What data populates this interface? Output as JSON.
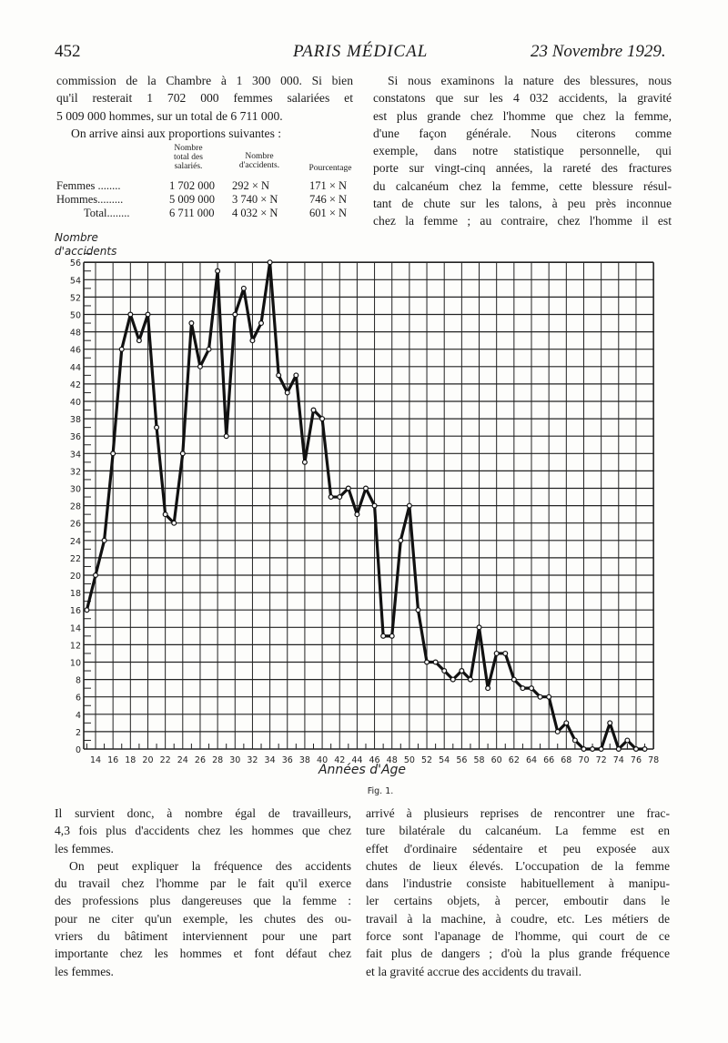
{
  "header": {
    "page_number": "452",
    "journal": "PARIS MÉDICAL",
    "date": "23 Novembre 1929."
  },
  "left_top": [
    "commission de la Chambre à 1 300 000. Si bien",
    "qu'il resterait 1 702 000 femmes salariées et",
    "5 009 000 hommes, sur un total de 6 711 000.",
    "On arrive ainsi aux proportions suivantes :"
  ],
  "table": {
    "headers": [
      "Nombre total des salariés.",
      "Nombre d'accidents.",
      "Pourcentage"
    ],
    "rows": [
      {
        "label": "Femmes ........",
        "salaries": "1 702 000",
        "accidents": "292 × N",
        "pct": "171 × N"
      },
      {
        "label": "Hommes.........",
        "salaries": "5 009 000",
        "accidents": "3 740 × N",
        "pct": "746 × N"
      },
      {
        "label": "Total........",
        "salaries": "6 711 000",
        "accidents": "4 032 × N",
        "pct": "601 × N"
      }
    ]
  },
  "right_top": [
    "Si nous examinons la nature des blessures, nous",
    "constatons que sur les 4 032 accidents, la gravité",
    "est plus grande chez l'homme que chez la femme,",
    "d'une façon générale. Nous citerons comme",
    "exemple, dans notre statistique personnelle, qui",
    "porte sur vingt-cinq années, la rareté des fractures",
    "du calcanéum chez la femme, cette blessure résul-",
    "tant de chute sur les talons, à peu près inconnue",
    "chez la femme ; au contraire, chez l'homme il est"
  ],
  "chart_data": {
    "type": "line",
    "ylabel": "Nombre d'accidents",
    "xlabel": "Années d'Age",
    "caption": "Fig. 1.",
    "xlim": [
      13,
      78
    ],
    "ylim": [
      0,
      56
    ],
    "grid": true,
    "x_ticks": [
      14,
      16,
      18,
      20,
      22,
      24,
      26,
      28,
      30,
      32,
      34,
      36,
      38,
      40,
      42,
      44,
      46,
      48,
      50,
      52,
      54,
      56,
      58,
      60,
      62,
      64,
      66,
      68,
      70,
      72,
      74,
      76,
      78
    ],
    "y_ticks": [
      0,
      2,
      4,
      6,
      8,
      10,
      12,
      14,
      16,
      18,
      20,
      22,
      24,
      26,
      28,
      30,
      32,
      34,
      36,
      38,
      40,
      42,
      44,
      46,
      48,
      50,
      52,
      54,
      56
    ],
    "x": [
      13,
      14,
      15,
      16,
      17,
      18,
      19,
      20,
      21,
      22,
      23,
      24,
      25,
      26,
      27,
      28,
      29,
      30,
      31,
      32,
      33,
      34,
      35,
      36,
      37,
      38,
      39,
      40,
      41,
      42,
      43,
      44,
      45,
      46,
      47,
      48,
      49,
      50,
      51,
      52,
      53,
      54,
      55,
      56,
      57,
      58,
      59,
      60,
      61,
      62,
      63,
      64,
      65,
      66,
      67,
      68,
      69,
      70,
      71,
      72,
      73,
      74,
      75,
      76,
      77
    ],
    "y": [
      16,
      20,
      24,
      34,
      46,
      50,
      47,
      50,
      37,
      27,
      26,
      34,
      49,
      44,
      46,
      55,
      36,
      50,
      53,
      47,
      49,
      56,
      43,
      41,
      43,
      33,
      39,
      38,
      29,
      29,
      30,
      27,
      30,
      28,
      13,
      13,
      24,
      28,
      16,
      10,
      10,
      9,
      8,
      9,
      8,
      14,
      7,
      11,
      11,
      8,
      7,
      7,
      6,
      6,
      2,
      3,
      1,
      0,
      0,
      0,
      3,
      0,
      1,
      0,
      0
    ]
  },
  "left_bottom": [
    "Il survient donc, à nombre égal de travailleurs,",
    "4,3 fois plus d'accidents chez les hommes que chez",
    "les femmes.",
    "On peut expliquer la fréquence des accidents",
    "du travail chez l'homme par le fait qu'il exerce",
    "des professions plus dangereuses que la femme :",
    "pour ne citer qu'un exemple, les chutes des ou-",
    "vriers du bâtiment interviennent pour une part",
    "importante chez les hommes et font défaut chez",
    "les femmes."
  ],
  "right_bottom": [
    "arrivé à plusieurs reprises de rencontrer une frac-",
    "ture bilatérale du calcanéum. La femme est en",
    "effet d'ordinaire sédentaire et peu exposée aux",
    "chutes de lieux élevés. L'occupation de la femme",
    "dans l'industrie consiste habituellement à manipu-",
    "ler certains objets, à percer, emboutir dans le",
    "travail à la machine, à coudre, etc. Les métiers de",
    "force sont l'apanage de l'homme, qui court de ce",
    "fait plus de dangers ; d'où la plus grande fréquence",
    "et la gravité accrue des accidents du travail."
  ]
}
